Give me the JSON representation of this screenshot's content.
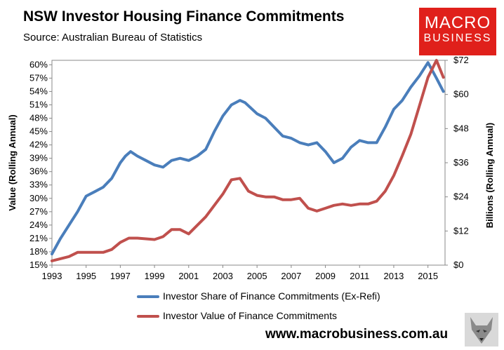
{
  "title": "NSW Investor Housing Finance Commitments",
  "subtitle": "Source: Australian Bureau of Statistics",
  "logo": {
    "line1": "MACRO",
    "line2": "BUSINESS",
    "color": "#e0201b"
  },
  "footer": "www.macrobusiness.com.au",
  "chart_data": {
    "type": "line",
    "title": "NSW Investor Housing Finance Commitments",
    "xlabel": "",
    "ylabel": "Value (Rolling Annual)",
    "ylabel_right": "Billions (Rolling Annual)",
    "xlim": [
      1993,
      2016
    ],
    "ylim": [
      15,
      61
    ],
    "ylim_right": [
      0,
      72
    ],
    "x_ticks": [
      1993,
      1995,
      1997,
      1999,
      2001,
      2003,
      2005,
      2007,
      2009,
      2011,
      2013,
      2015
    ],
    "y_ticks_left": [
      "15%",
      "18%",
      "21%",
      "24%",
      "27%",
      "30%",
      "33%",
      "36%",
      "39%",
      "42%",
      "45%",
      "48%",
      "51%",
      "54%",
      "57%",
      "60%"
    ],
    "y_ticks_right": [
      "$0",
      "$12",
      "$24",
      "$36",
      "$48",
      "$60",
      "$72"
    ],
    "grid": false,
    "legend_position": "bottom",
    "series": [
      {
        "name": "Investor Share of Finance Commitments (Ex-Refi)",
        "axis": "left",
        "color": "#4a7ebb",
        "points": [
          [
            1993,
            17.5
          ],
          [
            1993.5,
            21
          ],
          [
            1994,
            24
          ],
          [
            1994.5,
            27
          ],
          [
            1995,
            30.5
          ],
          [
            1995.5,
            31.5
          ],
          [
            1996,
            32.5
          ],
          [
            1996.5,
            34.5
          ],
          [
            1997,
            38
          ],
          [
            1997.3,
            39.5
          ],
          [
            1997.6,
            40.5
          ],
          [
            1998,
            39.5
          ],
          [
            1998.5,
            38.5
          ],
          [
            1999,
            37.5
          ],
          [
            1999.5,
            37
          ],
          [
            2000,
            38.5
          ],
          [
            2000.5,
            39
          ],
          [
            2001,
            38.5
          ],
          [
            2001.5,
            39.5
          ],
          [
            2002,
            41
          ],
          [
            2002.5,
            45
          ],
          [
            2003,
            48.5
          ],
          [
            2003.5,
            51
          ],
          [
            2004,
            52
          ],
          [
            2004.3,
            51.5
          ],
          [
            2005,
            49
          ],
          [
            2005.5,
            48
          ],
          [
            2006,
            46
          ],
          [
            2006.5,
            44
          ],
          [
            2007,
            43.5
          ],
          [
            2007.5,
            42.5
          ],
          [
            2008,
            42
          ],
          [
            2008.5,
            42.5
          ],
          [
            2009,
            40.5
          ],
          [
            2009.5,
            38
          ],
          [
            2010,
            39
          ],
          [
            2010.5,
            41.5
          ],
          [
            2011,
            43
          ],
          [
            2011.5,
            42.5
          ],
          [
            2012,
            42.5
          ],
          [
            2012.5,
            46
          ],
          [
            2013,
            50
          ],
          [
            2013.5,
            52
          ],
          [
            2014,
            55
          ],
          [
            2014.5,
            57.5
          ],
          [
            2015,
            60.5
          ],
          [
            2015.5,
            57
          ],
          [
            2015.9,
            54
          ]
        ]
      },
      {
        "name": "Investor Value of Finance Commitments",
        "axis": "right",
        "color": "#c0504d",
        "points": [
          [
            1993,
            1.5
          ],
          [
            1994,
            3
          ],
          [
            1994.5,
            4.5
          ],
          [
            1995,
            4.5
          ],
          [
            1996,
            4.5
          ],
          [
            1996.5,
            5.5
          ],
          [
            1997,
            8
          ],
          [
            1997.5,
            9.5
          ],
          [
            1998,
            9.5
          ],
          [
            1999,
            9
          ],
          [
            1999.5,
            10
          ],
          [
            2000,
            12.5
          ],
          [
            2000.5,
            12.5
          ],
          [
            2001,
            11
          ],
          [
            2001.5,
            14
          ],
          [
            2002,
            17
          ],
          [
            2002.5,
            21
          ],
          [
            2003,
            25
          ],
          [
            2003.5,
            30
          ],
          [
            2004,
            30.5
          ],
          [
            2004.5,
            26
          ],
          [
            2005,
            24.5
          ],
          [
            2005.5,
            24
          ],
          [
            2006,
            24
          ],
          [
            2006.5,
            23
          ],
          [
            2007,
            23
          ],
          [
            2007.5,
            23.5
          ],
          [
            2008,
            20
          ],
          [
            2008.5,
            19
          ],
          [
            2009,
            20
          ],
          [
            2009.5,
            21
          ],
          [
            2010,
            21.5
          ],
          [
            2010.5,
            21
          ],
          [
            2011,
            21.5
          ],
          [
            2011.5,
            21.5
          ],
          [
            2012,
            22.5
          ],
          [
            2012.5,
            26
          ],
          [
            2013,
            31.5
          ],
          [
            2013.5,
            38.5
          ],
          [
            2014,
            46
          ],
          [
            2014.5,
            56
          ],
          [
            2015,
            66
          ],
          [
            2015.5,
            72
          ],
          [
            2015.9,
            66
          ]
        ]
      }
    ]
  }
}
